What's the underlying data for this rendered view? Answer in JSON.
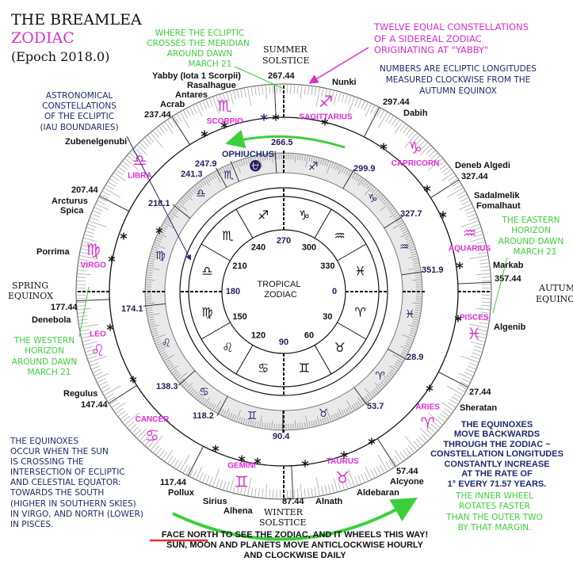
{
  "title": {
    "line1": "THE BREAMLEA",
    "line2": "ZODIAC",
    "line3": "(Epoch 2018.0)"
  },
  "colors": {
    "green": "#3ccf3c",
    "magenta": "#d82fd0",
    "navy": "#1d2a6e",
    "red": "#e03030"
  },
  "annotations": {
    "meridian": [
      "WHERE THE ECLIPTIC",
      "CROSSES THE MERIDIAN",
      "AROUND DAWN",
      "MARCH 21"
    ],
    "sidereal": [
      "TWELVE EQUAL CONSTELLATIONS",
      "OF A SIDEREAL ZODIAC",
      "ORIGINATING AT \"YABBY\""
    ],
    "numbers": [
      "NUMBERS ARE ECLIPTIC LONGITUDES",
      "MEASURED CLOCKWISE FROM THE",
      "AUTUMN EQUINOX"
    ],
    "astronomical": [
      "ASTRONOMICAL",
      "CONSTELLATIONS",
      "OF THE ECLIPTIC",
      "(IAU BOUNDARIES)"
    ],
    "eastern": [
      "THE EASTERN",
      "HORIZON",
      "AROUND DAWN",
      "MARCH 21"
    ],
    "western": [
      "THE WESTERN",
      "HORIZON",
      "AROUND DAWN",
      "MARCH 21"
    ],
    "equinoxes_occur": [
      "THE EQUINOXES",
      "OCCUR WHEN THE SUN",
      "IS CROSSING THE",
      "INTERSECTION OF ECLIPTIC",
      "AND CELESTIAL EQUATOR:",
      "TOWARDS THE SOUTH",
      "(HIGHER IN SOUTHERN SKIES)",
      "IN VIRGO, AND NORTH (LOWER)",
      "IN PISCES."
    ],
    "backwards": [
      "THE EQUINOXES",
      "MOVE BACKWARDS",
      "THROUGH THE ZODIAC ~",
      "CONSTELLATION LONGITUDES",
      "CONSTANTLY INCREASE",
      "AT THE RATE OF",
      "1° EVERY 71.57 YEARS."
    ],
    "inner_wheel": [
      "THE INNER WHEEL",
      "ROTATES FASTER",
      "THAN THE OUTER TWO",
      "BY THAT MARGIN."
    ],
    "bottom": {
      "face_north": "FACE NORTH",
      "line1_rest": " TO SEE THE ZODIAC, AND IT WHEELS THIS WAY!",
      "line2": "SUN, MOON AND PLANETS MOVE ANTICLOCKWISE HOURLY",
      "line3": "AND CLOCKWISE DAILY"
    }
  },
  "cardinal": {
    "summer": [
      "SUMMER",
      "SOLSTICE"
    ],
    "winter": [
      "WINTER",
      "SOLSTICE"
    ],
    "spring": [
      "SPRING",
      "EQUINOX"
    ],
    "autumn": [
      "AUTUMN",
      "EQUINOX"
    ]
  },
  "sidereal_ring": {
    "boundaries": [
      27.44,
      57.44,
      87.44,
      117.44,
      147.44,
      177.44,
      207.44,
      237.44,
      267.44,
      297.44,
      327.44,
      357.44
    ],
    "boundary_labels": [
      "27.44",
      "57.44",
      "87.44",
      "117.44",
      "147.44",
      "177.44",
      "207.44",
      "237.44",
      "267.44",
      "297.44",
      "327.44",
      "357.44"
    ],
    "signs": [
      {
        "name": "ARIES",
        "glyph": "♈"
      },
      {
        "name": "TAURUS",
        "glyph": "♉"
      },
      {
        "name": "GEMINI",
        "glyph": "♊"
      },
      {
        "name": "CANCER",
        "glyph": "♋"
      },
      {
        "name": "LEO",
        "glyph": "♌"
      },
      {
        "name": "VIRGO",
        "glyph": "♍"
      },
      {
        "name": "LIBRA",
        "glyph": "♎"
      },
      {
        "name": "SCORPIO",
        "glyph": "♏"
      },
      {
        "name": "SAGITTARIUS",
        "glyph": "♐"
      },
      {
        "name": "CAPRICORN",
        "glyph": "♑"
      },
      {
        "name": "AQUARIUS",
        "glyph": "♒"
      },
      {
        "name": "PISCES",
        "glyph": "♓"
      }
    ]
  },
  "iau_ring": {
    "boundaries": [
      28.9,
      53.7,
      90.4,
      118.2,
      138.3,
      174.1,
      218.1,
      241.3,
      247.9,
      266.5,
      299.9,
      327.7,
      351.9
    ],
    "labels": [
      "28.9",
      "53.7",
      "90.4",
      "118.2",
      "138.3",
      "174.1",
      "218.1",
      "241.3",
      "247.9",
      "266.5",
      "299.9",
      "327.7",
      "351.9"
    ],
    "glyphs": [
      "♈",
      "♉",
      "♊",
      "♋",
      "♌",
      "♍",
      "♎",
      "♏",
      "⛎",
      "♐",
      "♑",
      "♒",
      "♓"
    ],
    "ophiuchus_label": "OPHIUCHUS"
  },
  "tropical": {
    "title": [
      "TROPICAL",
      "ZODIAC"
    ],
    "numbers": [
      "0",
      "30",
      "60",
      "90",
      "120",
      "150",
      "180",
      "210",
      "240",
      "270",
      "300",
      "330"
    ],
    "glyphs": [
      "♈",
      "♉",
      "♊",
      "♋",
      "♌",
      "♍",
      "♎",
      "♏",
      "♐",
      "♑",
      "♒",
      "♓"
    ]
  },
  "stars": {
    "yabby": "Yabby (Iota 1 Scorpii)",
    "rasalhague": "Rasalhague",
    "antares": "Antares",
    "acrab": "Acrab",
    "nunki": "Nunki",
    "dabih": "Dabih",
    "zubenelgenubi": "Zubenelgenubi",
    "deneb_algedi": "Deneb Algedi",
    "sadalmelik": "Sadalmelik",
    "fomalhaut": "Fomalhaut",
    "arcturus": "Arcturus",
    "spica": "Spica",
    "porrima": "Porrima",
    "markab": "Markab",
    "denebola": "Denebola",
    "algenib": "Algenib",
    "regulus": "Regulus",
    "sheratan": "Sheratan",
    "pollux": "Pollux",
    "sirius": "Sirius",
    "alhena": "Alhena",
    "alnath": "Alnath",
    "alcyone": "Alcyone",
    "aldebaran": "Aldebaran"
  }
}
